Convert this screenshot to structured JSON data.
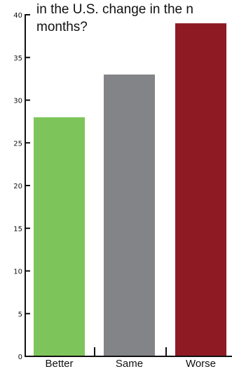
{
  "chart_data": {
    "type": "bar",
    "title_lines": [
      "in the U.S. change in the n",
      "months?"
    ],
    "categories": [
      "Better",
      "Same",
      "Worse"
    ],
    "values": [
      28,
      33,
      39
    ],
    "colors": [
      "#7dc55a",
      "#838487",
      "#8e1a23"
    ],
    "ylim": [
      0,
      40
    ],
    "yticks": [
      "0",
      "5",
      "10",
      "15",
      "20",
      "25",
      "30",
      "35",
      "40"
    ],
    "grid": false,
    "legend": "none"
  }
}
